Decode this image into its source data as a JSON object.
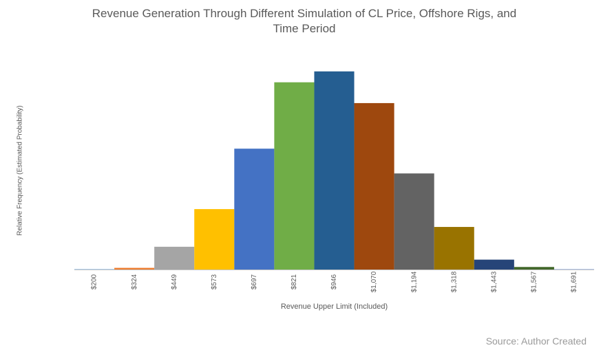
{
  "chart_data": {
    "type": "bar",
    "title_lines": [
      "Revenue Generation Through Different Simulation of CL Price, Offshore Rigs, and",
      "Time Period"
    ],
    "xlabel": "Revenue Upper Limit (Included)",
    "ylabel": "Relative Frequency (Estimated Probability)",
    "categories": [
      "$200",
      "$324",
      "$449",
      "$573",
      "$697",
      "$821",
      "$946",
      "$1,070",
      "$1,194",
      "$1,318",
      "$1,443",
      "$1,567",
      "$1,691"
    ],
    "values": [
      0.0005,
      0.0085,
      0.115,
      0.305,
      0.61,
      0.945,
      1.0,
      0.84,
      0.485,
      0.215,
      0.05,
      0.013,
      0.0015
    ],
    "ylim": [
      0,
      1.1
    ],
    "colors": [
      "#5B9BD5",
      "#ED7D31",
      "#A5A5A5",
      "#FFC000",
      "#4472C4",
      "#70AD47",
      "#255E91",
      "#9E480E",
      "#636363",
      "#997300",
      "#264478",
      "#43682B",
      "#698ED0"
    ],
    "grid": false,
    "legend": "none",
    "source": "Source: Author Created"
  }
}
